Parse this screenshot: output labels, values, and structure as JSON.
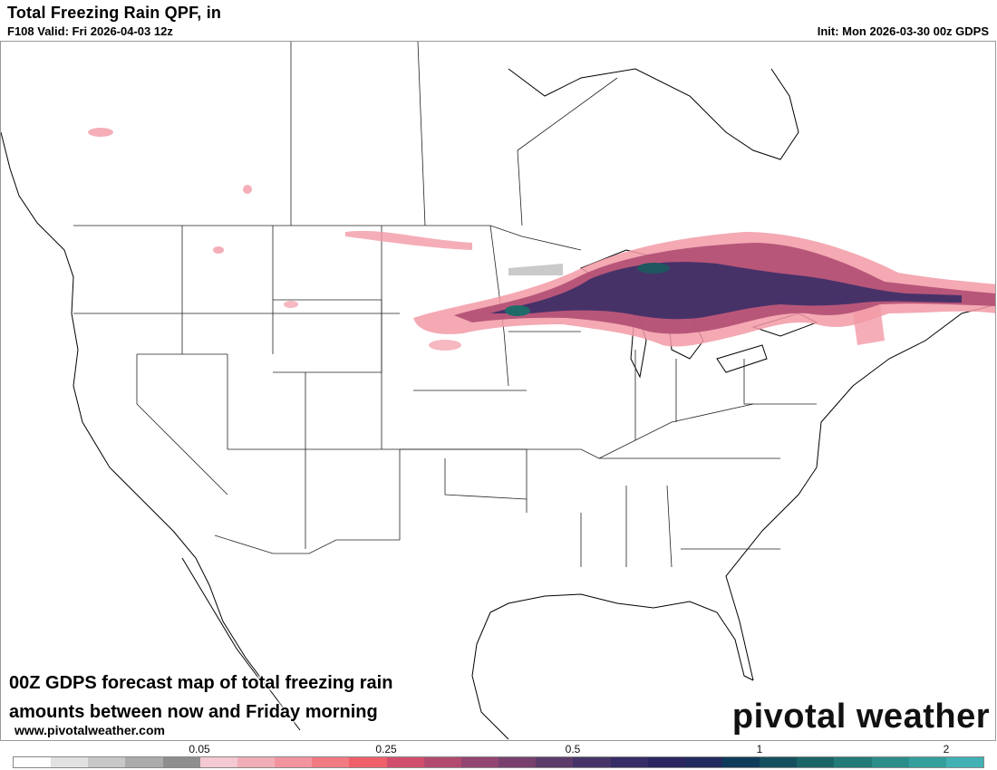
{
  "header": {
    "title": "Total Freezing Rain QPF, in",
    "valid": "F108 Valid: Fri 2026-04-03 12z",
    "init": "Init: Mon 2026-03-30 00z GDPS"
  },
  "caption": {
    "line1": "00Z GDPS forecast map of total freezing rain",
    "line2": "amounts between now and Friday morning"
  },
  "website": "www.pivotalweather.com",
  "logo": "pivotal weather",
  "colorbar": {
    "colors": [
      "#ffffff",
      "#e2e2e2",
      "#c8c8c8",
      "#ababab",
      "#8e8e8e",
      "#f4c9d2",
      "#f2aeb8",
      "#f2949e",
      "#f27a83",
      "#f0606a",
      "#d24e6e",
      "#b24a70",
      "#944470",
      "#78406e",
      "#5c3b6a",
      "#463468",
      "#362c66",
      "#2b2660",
      "#222a5e",
      "#0f3b5a",
      "#14505e",
      "#1b6468",
      "#237a78",
      "#2b8e8a",
      "#349f9c",
      "#41b1b5"
    ],
    "ticks": [
      {
        "label": "0.05"
      },
      {
        "label": "0.25"
      },
      {
        "label": "0.5"
      },
      {
        "label": "1"
      },
      {
        "label": "2"
      }
    ]
  }
}
